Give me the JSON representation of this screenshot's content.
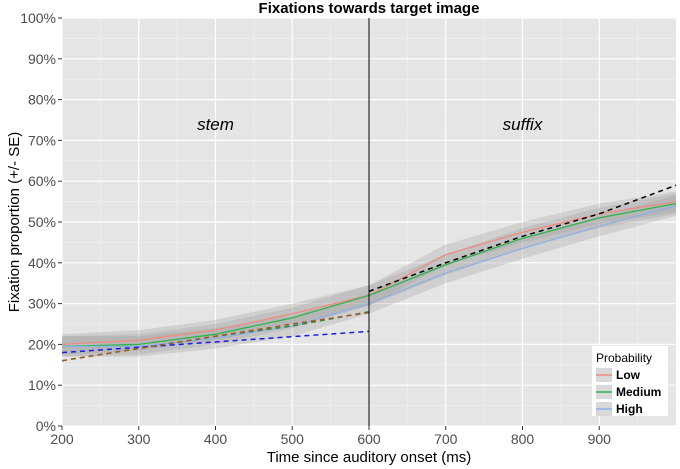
{
  "chart_data": {
    "type": "line",
    "title": "Fixations towards target image",
    "xlabel": "Time since auditory onset (ms)",
    "ylabel": "Fixation proportion (+/- SE)",
    "xlim": [
      200,
      1000
    ],
    "ylim": [
      0,
      1
    ],
    "x_ticks": [
      200,
      300,
      400,
      500,
      600,
      700,
      800,
      900
    ],
    "x_tick_labels": [
      "200",
      "300",
      "400",
      "500",
      "600",
      "700",
      "800",
      "900"
    ],
    "y_ticks": [
      0,
      0.1,
      0.2,
      0.3,
      0.4,
      0.5,
      0.6,
      0.7,
      0.8,
      0.9,
      1.0
    ],
    "y_tick_labels": [
      "0%",
      "10%",
      "20%",
      "30%",
      "40%",
      "50%",
      "60%",
      "70%",
      "80%",
      "90%",
      "100%"
    ],
    "grid": true,
    "legend": {
      "title": "Probability",
      "position": "bottom-right",
      "entries": [
        "Low",
        "Medium",
        "High"
      ]
    },
    "vline": {
      "x": 600,
      "color": "#000000"
    },
    "annotations": [
      {
        "text": "stem",
        "x": 400,
        "y": 0.74
      },
      {
        "text": "suffix",
        "x": 800,
        "y": 0.74
      }
    ],
    "x": [
      200,
      300,
      400,
      500,
      600,
      700,
      800,
      900,
      1000
    ],
    "series": [
      {
        "name": "Low",
        "color": "#f08b80",
        "values": [
          0.2,
          0.21,
          0.235,
          0.275,
          0.32,
          0.42,
          0.475,
          0.52,
          0.55
        ],
        "se": 0.025
      },
      {
        "name": "Medium",
        "color": "#2fb34a",
        "values": [
          0.195,
          0.2,
          0.225,
          0.265,
          0.32,
          0.395,
          0.46,
          0.51,
          0.545
        ],
        "se": 0.025
      },
      {
        "name": "High",
        "color": "#8fb0e6",
        "values": [
          0.195,
          0.195,
          0.215,
          0.245,
          0.3,
          0.375,
          0.435,
          0.49,
          0.54
        ],
        "se": 0.025
      }
    ],
    "fit_lines": [
      {
        "color": "#1a1ae6",
        "x": [
          200,
          600
        ],
        "y": [
          0.18,
          0.232
        ]
      },
      {
        "color": "#2e8b2e",
        "x": [
          200,
          300,
          400,
          500,
          600
        ],
        "y": [
          0.16,
          0.19,
          0.22,
          0.245,
          0.28
        ]
      },
      {
        "color": "#a05a2a",
        "x": [
          200,
          300,
          400,
          500,
          600
        ],
        "y": [
          0.16,
          0.19,
          0.22,
          0.25,
          0.278
        ]
      },
      {
        "color": "#000000",
        "x": [
          600,
          700,
          800,
          900,
          1000
        ],
        "y": [
          0.33,
          0.4,
          0.465,
          0.52,
          0.59
        ]
      }
    ]
  }
}
